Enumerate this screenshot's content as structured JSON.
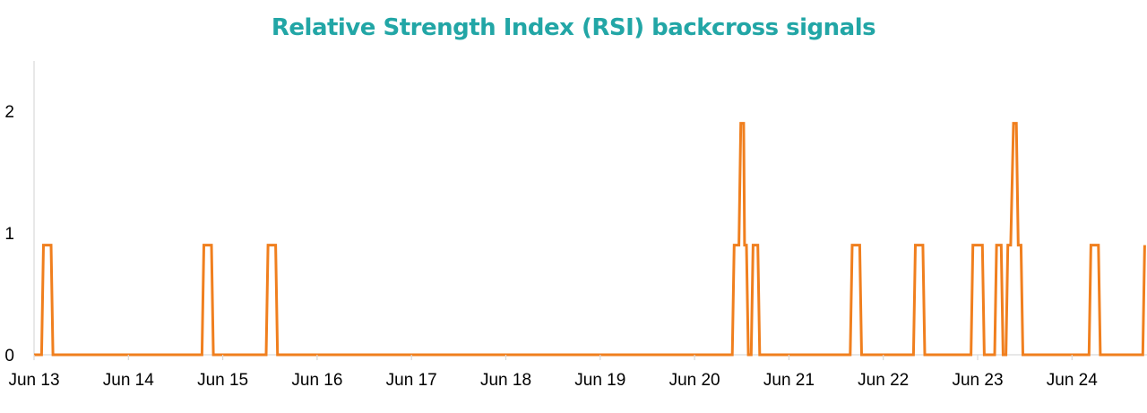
{
  "chart_data": {
    "type": "line",
    "title": "Relative Strength Index (RSI) backcross signals",
    "xlabel": "",
    "ylabel": "",
    "x_tick_labels": [
      "Jun 13",
      "Jun 14",
      "Jun 15",
      "Jun 16",
      "Jun 17",
      "Jun 18",
      "Jun 19",
      "Jun 20",
      "Jun 21",
      "Jun 22",
      "Jun 23",
      "Jun 24"
    ],
    "y_tick_labels": [
      "0",
      "1",
      "2"
    ],
    "ylim": [
      0,
      2.4
    ],
    "xlim": [
      13.0,
      24.75
    ],
    "grid": false,
    "legend": "none",
    "line_color": "#f07f1e",
    "series": [
      {
        "x": [
          13.0,
          13.08,
          13.1,
          13.18,
          13.2,
          14.78,
          14.8,
          14.88,
          14.9,
          15.46,
          15.48,
          15.56,
          15.58,
          20.4,
          20.42,
          20.47,
          20.49,
          20.52,
          20.53,
          20.55,
          20.57,
          20.6,
          20.62,
          20.67,
          20.69,
          21.65,
          21.67,
          21.75,
          21.77,
          22.32,
          22.34,
          22.42,
          22.44,
          22.93,
          22.95,
          23.05,
          23.07,
          23.18,
          23.2,
          23.25,
          23.27,
          23.3,
          23.32,
          23.35,
          23.38,
          23.41,
          23.43,
          23.46,
          23.48,
          24.18,
          24.2,
          24.28,
          24.3,
          24.75,
          24.77
        ],
        "y": [
          0,
          0,
          0.9,
          0.9,
          0,
          0,
          0.9,
          0.9,
          0,
          0,
          0.9,
          0.9,
          0,
          0,
          0.9,
          0.9,
          1.9,
          1.9,
          0.9,
          0.9,
          0,
          0,
          0.9,
          0.9,
          0,
          0,
          0.9,
          0.9,
          0,
          0,
          0.9,
          0.9,
          0,
          0,
          0.9,
          0.9,
          0,
          0,
          0.9,
          0.9,
          0,
          0,
          0.9,
          0.9,
          1.9,
          1.9,
          0.9,
          0.9,
          0,
          0,
          0.9,
          0.9,
          0,
          0,
          0.9
        ]
      }
    ]
  }
}
